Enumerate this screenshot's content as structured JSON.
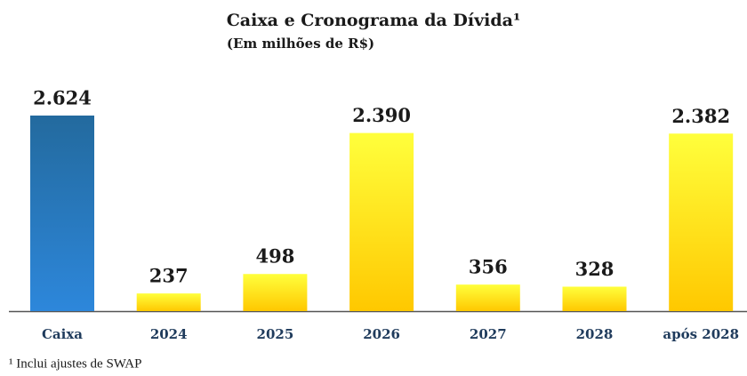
{
  "chart_data": {
    "type": "bar",
    "title": "Caixa e Cronograma da Dívida¹",
    "subtitle": "(Em milhões de R$)",
    "footnote": "¹ Inclui ajustes de SWAP",
    "categories": [
      "Caixa",
      "2024",
      "2025",
      "2026",
      "2027",
      "2028",
      "após 2028"
    ],
    "values": [
      2624,
      237,
      498,
      2390,
      356,
      328,
      2382
    ],
    "value_labels": [
      "2.624",
      "237",
      "498",
      "2.390",
      "356",
      "328",
      "2.382"
    ],
    "colors": [
      [
        "#236a9e",
        "#2d87db"
      ],
      [
        "#ffff3c",
        "#ffc800"
      ],
      [
        "#ffff3c",
        "#ffc800"
      ],
      [
        "#ffff3c",
        "#ffc800"
      ],
      [
        "#ffff3c",
        "#ffc800"
      ],
      [
        "#ffff3c",
        "#ffc800"
      ],
      [
        "#ffff3c",
        "#ffc800"
      ]
    ]
  }
}
